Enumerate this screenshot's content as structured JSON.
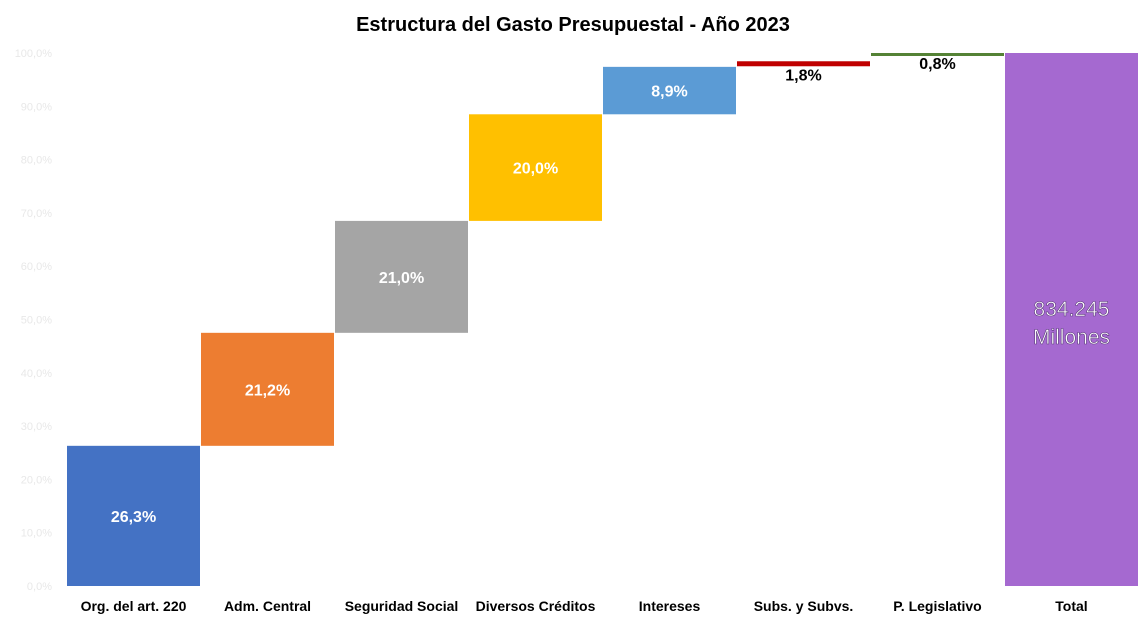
{
  "chart_data": {
    "type": "bar",
    "subtype": "waterfall",
    "title": "Estructura del Gasto Presupuestal - Año 2023",
    "categories": [
      "Org. del art. 220",
      "Adm. Central",
      "Seguridad Social",
      "Diversos Créditos",
      "Intereses",
      "Subs. y Subvs.",
      "P. Legislativo",
      "Total"
    ],
    "values": [
      26.3,
      21.2,
      21.0,
      20.0,
      8.9,
      1.8,
      0.8,
      100
    ],
    "labels": [
      "26,3%",
      "21,2%",
      "21,0%",
      "20,0%",
      "8,9%",
      "1,8%",
      "0,8%"
    ],
    "total_label": [
      "834.245",
      "Millones"
    ],
    "colors": [
      "#4472C4",
      "#ED7D31",
      "#A5A5A5",
      "#FFC000",
      "#5B9BD5",
      "#C00000",
      "#548235",
      "#A569D0"
    ],
    "ylim": [
      0,
      100
    ],
    "yticks": [
      "0,0%",
      "10,0%",
      "20,0%",
      "30,0%",
      "40,0%",
      "50,0%",
      "60,0%",
      "70,0%",
      "80,0%",
      "90,0%",
      "100,0%"
    ],
    "grid": false,
    "legend": "none"
  }
}
